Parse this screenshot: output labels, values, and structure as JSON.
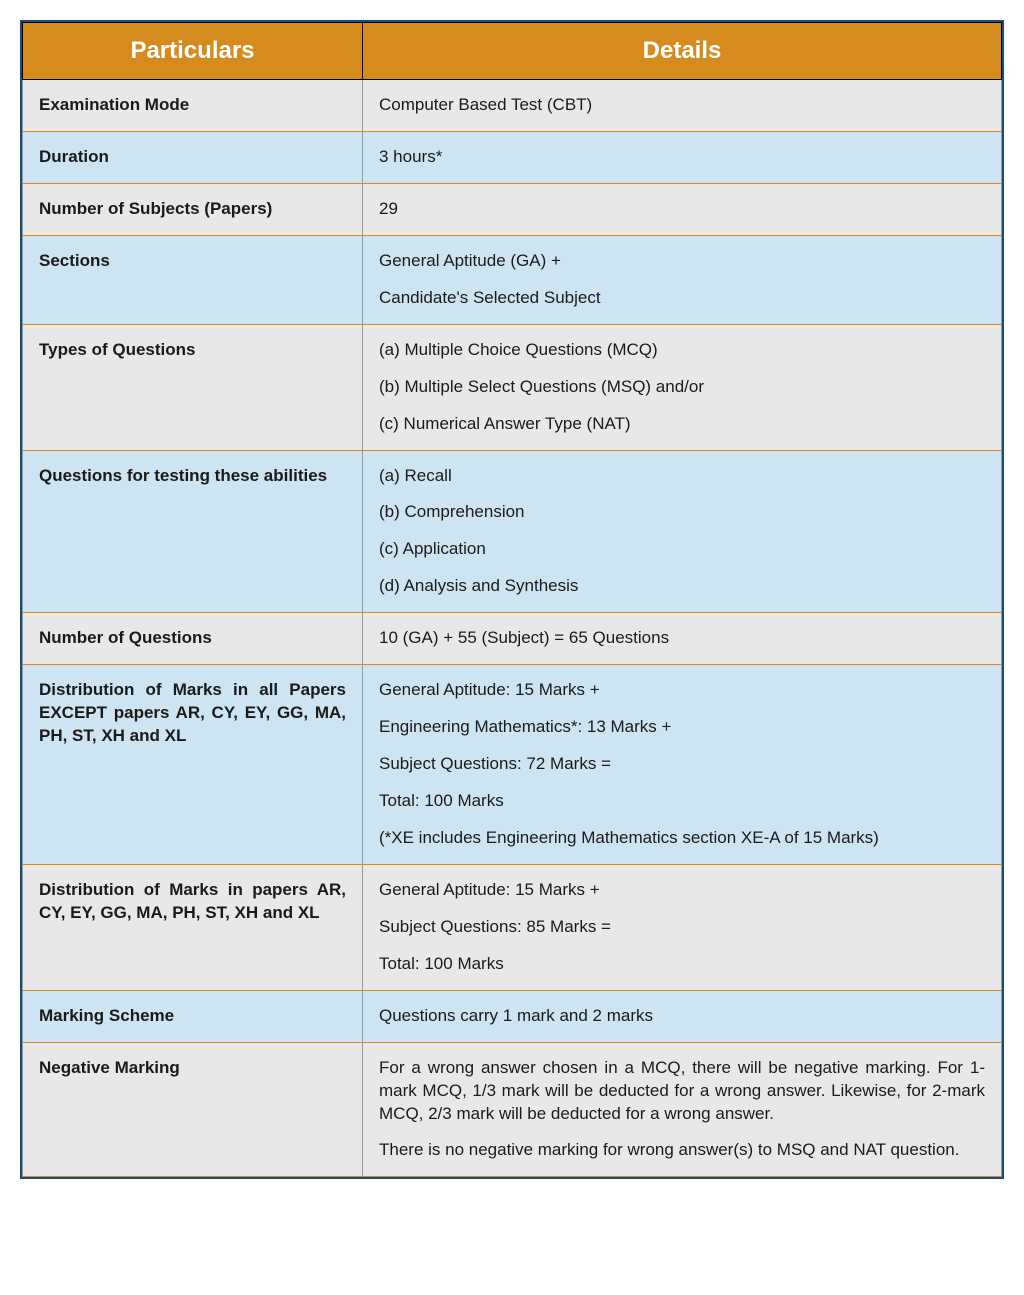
{
  "table": {
    "header_bg": "#d68b1f",
    "header_fg": "#ffffff",
    "row_grey_bg": "#e8e8e8",
    "row_blue_bg": "#cde5f2",
    "border_outer": "#1a4d7a",
    "row_border": "#d68b1f",
    "columns": [
      "Particulars",
      "Details"
    ],
    "rows": [
      {
        "shade": "grey",
        "particulars": "Examination Mode",
        "details": [
          "Computer Based Test (CBT)"
        ]
      },
      {
        "shade": "blue",
        "particulars": "Duration",
        "details": [
          "3 hours*"
        ]
      },
      {
        "shade": "grey",
        "particulars": "Number of Subjects (Papers)",
        "details": [
          "29"
        ]
      },
      {
        "shade": "blue",
        "particulars": "Sections",
        "details": [
          "General Aptitude (GA) +",
          "Candidate's Selected Subject"
        ]
      },
      {
        "shade": "grey",
        "particulars": "Types of Questions",
        "details": [
          "(a) Multiple Choice Questions (MCQ)",
          "(b) Multiple Select Questions (MSQ) and/or",
          "(c) Numerical Answer Type (NAT)"
        ]
      },
      {
        "shade": "blue",
        "particulars": "Questions for testing these abilities",
        "particulars_justify": true,
        "details": [
          "(a) Recall",
          "(b) Comprehension",
          "(c) Application",
          "(d) Analysis and Synthesis"
        ]
      },
      {
        "shade": "grey",
        "particulars": "Number of Questions",
        "details": [
          "10 (GA) + 55 (Subject) = 65 Questions"
        ]
      },
      {
        "shade": "blue",
        "particulars": "Distribution of Marks in all Papers EXCEPT papers AR, CY, EY, GG, MA, PH, ST, XH and XL",
        "particulars_justify": true,
        "details": [
          "General Aptitude: 15 Marks +",
          "Engineering Mathematics*: 13 Marks +",
          "Subject Questions: 72 Marks =",
          "Total: 100 Marks",
          "(*XE includes Engineering Mathematics section XE-A of 15 Marks)"
        ]
      },
      {
        "shade": "grey",
        "particulars": "Distribution of Marks in papers AR, CY, EY, GG, MA, PH, ST, XH and XL",
        "particulars_justify": true,
        "details": [
          "General Aptitude: 15 Marks +",
          "Subject Questions: 85 Marks =",
          "Total: 100 Marks"
        ]
      },
      {
        "shade": "blue",
        "particulars": "Marking Scheme",
        "details": [
          "Questions carry 1 mark and 2 marks"
        ]
      },
      {
        "shade": "grey",
        "particulars": "Negative Marking",
        "details_justify": true,
        "details": [
          "For a wrong answer chosen in a MCQ, there will be negative marking. For 1-mark MCQ, 1/3 mark will be deducted for a wrong answer. Likewise, for 2-mark MCQ, 2/3 mark will be deducted for a wrong answer.",
          "There is no negative marking for wrong answer(s) to MSQ and NAT question."
        ]
      }
    ]
  }
}
